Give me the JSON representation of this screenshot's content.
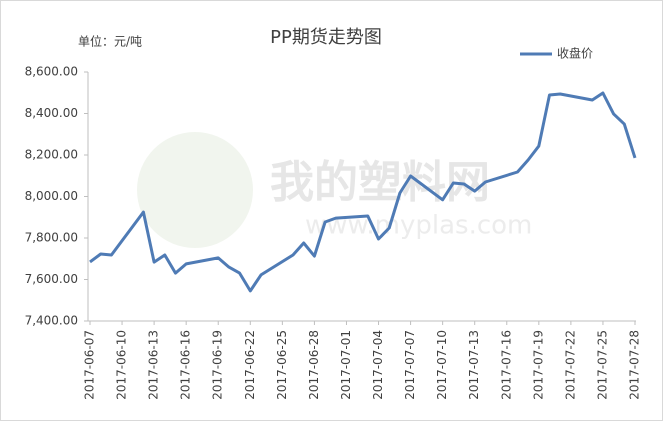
{
  "chart_data": {
    "type": "line",
    "title": "PP期货走势图",
    "unit_label": "单位：元/吨",
    "watermark": [
      "我的塑料网",
      "www.myplas.com"
    ],
    "x": [
      "2017-06-07",
      "2017-06-08",
      "2017-06-09",
      "2017-06-12",
      "2017-06-13",
      "2017-06-14",
      "2017-06-15",
      "2017-06-16",
      "2017-06-19",
      "2017-06-20",
      "2017-06-21",
      "2017-06-22",
      "2017-06-23",
      "2017-06-26",
      "2017-06-27",
      "2017-06-28",
      "2017-06-29",
      "2017-06-30",
      "2017-07-03",
      "2017-07-04",
      "2017-07-05",
      "2017-07-06",
      "2017-07-07",
      "2017-07-10",
      "2017-07-11",
      "2017-07-12",
      "2017-07-13",
      "2017-07-14",
      "2017-07-17",
      "2017-07-18",
      "2017-07-19",
      "2017-07-20",
      "2017-07-21",
      "2017-07-24",
      "2017-07-25",
      "2017-07-26",
      "2017-07-27",
      "2017-07-28"
    ],
    "series": [
      {
        "name": "收盘价",
        "color": "#4f7bb5",
        "values": [
          7685,
          7723,
          7718,
          7925,
          7684,
          7718,
          7631,
          7675,
          7704,
          7660,
          7631,
          7545,
          7622,
          7718,
          7776,
          7713,
          7877,
          7896,
          7906,
          7795,
          7848,
          8017,
          8099,
          7984,
          8065,
          8060,
          8026,
          8070,
          8118,
          8176,
          8243,
          8489,
          8494,
          8465,
          8499,
          8398,
          8349,
          8186
        ]
      }
    ],
    "xlim": [
      "2017-06-07",
      "2017-07-28"
    ],
    "xticks": [
      "2017-06-07",
      "2017-06-10",
      "2017-06-13",
      "2017-06-16",
      "2017-06-19",
      "2017-06-22",
      "2017-06-25",
      "2017-06-28",
      "2017-07-01",
      "2017-07-04",
      "2017-07-07",
      "2017-07-10",
      "2017-07-13",
      "2017-07-16",
      "2017-07-19",
      "2017-07-22",
      "2017-07-25",
      "2017-07-28"
    ],
    "ylim": [
      7400,
      8600
    ],
    "yticks": [
      {
        "value": 7400,
        "label": "7,400.00"
      },
      {
        "value": 7600,
        "label": "7,600.00"
      },
      {
        "value": 7800,
        "label": "7,800.00"
      },
      {
        "value": 8000,
        "label": "8,000.00"
      },
      {
        "value": 8200,
        "label": "8,200.00"
      },
      {
        "value": 8400,
        "label": "8,400.00"
      },
      {
        "value": 8600,
        "label": "8,600.00"
      }
    ],
    "grid": false,
    "legend": "top-right"
  }
}
